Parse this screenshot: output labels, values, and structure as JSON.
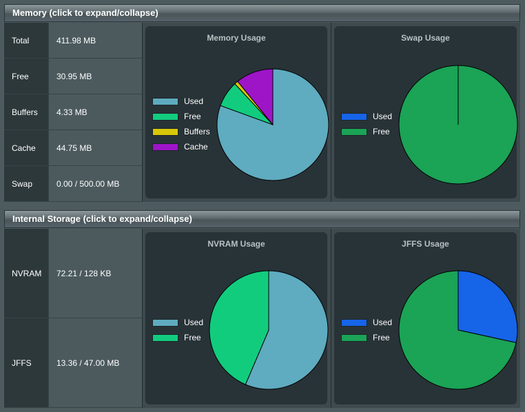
{
  "colors": {
    "used": "#5fabbf",
    "free_mem": "#12cc7e",
    "buffers": "#d8c809",
    "cache": "#9e15c8",
    "used_blue": "#1664e8",
    "free_green": "#1ba356"
  },
  "memory": {
    "header": "Memory (click to expand/collapse)",
    "rows": [
      {
        "label": "Total",
        "value": "411.98 MB"
      },
      {
        "label": "Free",
        "value": "30.95 MB"
      },
      {
        "label": "Buffers",
        "value": "4.33 MB"
      },
      {
        "label": "Cache",
        "value": "44.75 MB"
      },
      {
        "label": "Swap",
        "value": "0.00 / 500.00 MB"
      }
    ],
    "memory_chart": {
      "title": "Memory Usage",
      "legend": [
        "Used",
        "Free",
        "Buffers",
        "Cache"
      ],
      "values": [
        331.95,
        30.95,
        4.33,
        44.75
      ]
    },
    "swap_chart": {
      "title": "Swap Usage",
      "legend": [
        "Used",
        "Free"
      ],
      "values": [
        0.0,
        500.0
      ]
    }
  },
  "storage": {
    "header": "Internal Storage (click to expand/collapse)",
    "rows": [
      {
        "label": "NVRAM",
        "value": "72.21 / 128 KB"
      },
      {
        "label": "JFFS",
        "value": "13.36 / 47.00 MB"
      }
    ],
    "nvram_chart": {
      "title": "NVRAM Usage",
      "legend": [
        "Used",
        "Free"
      ],
      "values": [
        72.21,
        55.79
      ]
    },
    "jffs_chart": {
      "title": "JFFS Usage",
      "legend": [
        "Used",
        "Free"
      ],
      "values": [
        13.36,
        33.64
      ]
    }
  }
}
